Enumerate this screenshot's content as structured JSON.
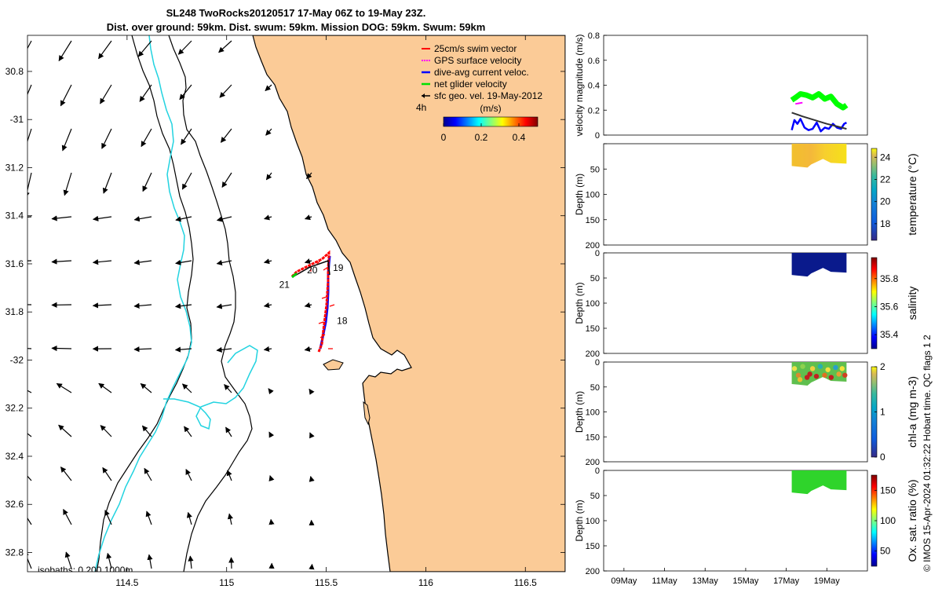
{
  "chart_data": [
    {
      "type": "map-vector-field",
      "title_line1": "SL248 TwoRocks20120517 17-May 06Z to 19-May 23Z.",
      "title_line2": "Dist. over ground: 59km. Dist. swum: 59km. Mission DOG: 59km. Swum: 59km",
      "xlim": [
        114.0,
        116.7
      ],
      "ylim": [
        -32.88,
        -30.65
      ],
      "xticks": [
        114.5,
        115,
        115.5,
        116,
        116.5
      ],
      "xtick_labels": [
        "114.5",
        "115",
        "115.5",
        "116",
        "116.5"
      ],
      "yticks": [
        -30.8,
        -31,
        -31.2,
        -31.4,
        -31.6,
        -31.8,
        -32,
        -32.2,
        -32.4,
        -32.6,
        -32.8
      ],
      "ytick_labels": [
        "30.8",
        "-31",
        "31.2",
        "31.4",
        "31.6",
        "31.8",
        "-32",
        "32.2",
        "32.4",
        "32.6",
        "32.8"
      ],
      "legend": {
        "placement": "top-right",
        "entries": [
          {
            "label": "25cm/s swim vector",
            "color": "#ff0000"
          },
          {
            "label": "GPS surface velocity",
            "color": "#ff00ff"
          },
          {
            "label": "dive-avg current veloc.",
            "color": "#0000ff"
          },
          {
            "label": "net glider velocity",
            "color": "#00e000"
          },
          {
            "label": "sfc geo. vel. 19-May-2012",
            "color": "#000000"
          }
        ],
        "extra_label": "4h"
      },
      "colorbar": {
        "label": "(m/s)",
        "ticks": [
          0,
          0.2,
          0.4
        ],
        "tick_labels": [
          "0",
          "0.2",
          "0.4"
        ],
        "range": [
          0,
          0.5
        ]
      },
      "isobath_label": "isobaths: 0   200  1000m",
      "day_labels": [
        {
          "text": "18",
          "lon": 115.58,
          "lat": -31.85
        },
        {
          "text": "19",
          "lon": 115.56,
          "lat": -31.63
        },
        {
          "text": "20",
          "lon": 115.43,
          "lat": -31.64
        },
        {
          "text": "21",
          "lon": 115.29,
          "lat": -31.7
        }
      ]
    },
    {
      "type": "line",
      "ylabel": "velocity magnitude (m/s)",
      "ylim": [
        0,
        0.8
      ],
      "yticks": [
        0,
        0.2,
        0.4,
        0.6,
        0.8
      ],
      "ytick_labels": [
        "0",
        "0.2",
        "0.4",
        "0.6",
        "0.8"
      ],
      "series": [
        {
          "color": "#00ff00",
          "x": [
            17.27,
            17.45,
            17.7,
            18.0,
            18.3,
            18.6,
            18.9,
            19.2,
            19.5,
            19.8,
            19.97
          ],
          "values": [
            0.28,
            0.3,
            0.33,
            0.32,
            0.3,
            0.33,
            0.29,
            0.31,
            0.25,
            0.22,
            0.24
          ]
        },
        {
          "color": "#0000ff",
          "x": [
            17.27,
            17.4,
            17.55,
            17.7,
            17.9,
            18.1,
            18.3,
            18.5,
            18.7,
            18.9,
            19.1,
            19.3,
            19.5,
            19.7,
            19.85,
            19.97
          ],
          "values": [
            0.04,
            0.12,
            0.09,
            0.13,
            0.06,
            0.04,
            0.05,
            0.1,
            0.03,
            0.06,
            0.05,
            0.09,
            0.06,
            0.05,
            0.09,
            0.1
          ]
        },
        {
          "color": "#333333",
          "x": [
            17.27,
            17.8,
            18.4,
            19.0,
            19.5,
            19.97
          ],
          "values": [
            0.18,
            0.15,
            0.12,
            0.09,
            0.07,
            0.05
          ]
        },
        {
          "color": "#ff00ff",
          "x": [
            17.45,
            17.8
          ],
          "values": [
            0.25,
            0.26
          ]
        }
      ]
    },
    {
      "type": "heatmap",
      "ylabel": "Depth (m)",
      "colorbar_label": "temperature (°C)",
      "ylim": [
        0,
        200
      ],
      "yticks": [
        0,
        50,
        100,
        150,
        200
      ],
      "ytick_labels": [
        "",
        "50",
        "100",
        "150",
        "200"
      ],
      "cticks": [
        18,
        20,
        22,
        24
      ],
      "ctick_labels": [
        "18",
        "20",
        "22",
        "24"
      ],
      "crange": [
        16.5,
        24.8
      ],
      "colormap": "parula",
      "data_extent": {
        "t_start": 17.27,
        "t_end": 19.97,
        "depth_max": 44
      },
      "data_value": 23.4
    },
    {
      "type": "heatmap",
      "ylabel": "Depth (m)",
      "colorbar_label": "salinity",
      "ylim": [
        0,
        200
      ],
      "yticks": [
        0,
        50,
        100,
        150,
        200
      ],
      "ytick_labels": [
        "0",
        "50",
        "100",
        "150",
        "200"
      ],
      "cticks": [
        35.4,
        35.6,
        35.8
      ],
      "ctick_labels": [
        "35.4",
        "35.6",
        "35.8"
      ],
      "crange": [
        35.3,
        35.95
      ],
      "colormap": "jet",
      "data_extent": {
        "t_start": 17.27,
        "t_end": 19.97,
        "depth_max": 44
      },
      "data_value": 35.3
    },
    {
      "type": "heatmap",
      "ylabel": "Depth (m)",
      "colorbar_label": "chl-a (mg m-3)",
      "ylim": [
        0,
        200
      ],
      "yticks": [
        0,
        50,
        100,
        150,
        200
      ],
      "ytick_labels": [
        "0",
        "50",
        "100",
        "150",
        "200"
      ],
      "cticks": [
        0,
        1,
        2
      ],
      "ctick_labels": [
        "0",
        "1",
        "2"
      ],
      "crange": [
        0,
        2
      ],
      "colormap": "parula",
      "data_extent": {
        "t_start": 17.27,
        "t_end": 19.97,
        "depth_max": 44
      },
      "data_value": 0.9
    },
    {
      "type": "heatmap",
      "ylabel": "Depth (m)",
      "colorbar_label": "Ox. sat. ratio (%)",
      "ylim": [
        0,
        200
      ],
      "yticks": [
        0,
        50,
        100,
        150,
        200
      ],
      "ytick_labels": [
        "0",
        "50",
        "100",
        "150",
        "200"
      ],
      "cticks": [
        50,
        100,
        150
      ],
      "ctick_labels": [
        "50",
        "100",
        "150"
      ],
      "crange": [
        25,
        175
      ],
      "colormap": "jet",
      "data_extent": {
        "t_start": 17.27,
        "t_end": 19.97,
        "depth_max": 44
      },
      "data_value": 100,
      "xlim": [
        8,
        21
      ],
      "xticks": [
        9,
        11,
        13,
        15,
        17,
        19
      ],
      "xtick_labels": [
        "09May",
        "11May",
        "13May",
        "15May",
        "17May",
        "19May"
      ]
    }
  ],
  "side_note": "© IMOS 15-Apr-2024 01:32:22 Hobart time. QC flags 1  2"
}
